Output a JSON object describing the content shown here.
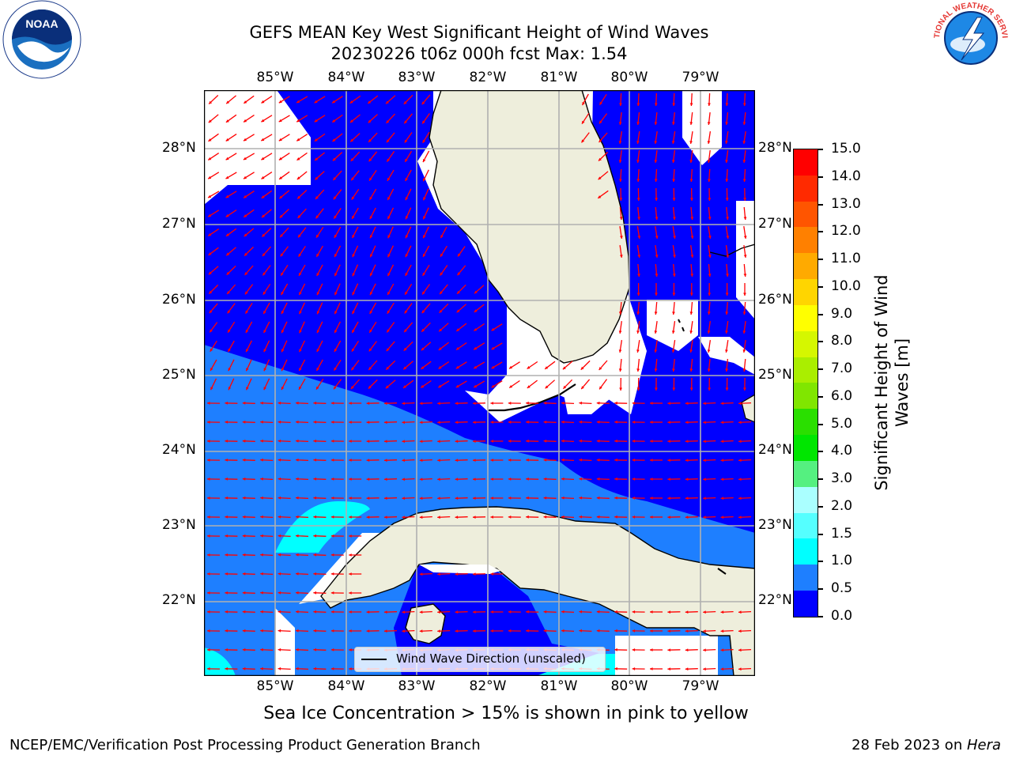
{
  "title": {
    "line1": "GEFS MEAN Key West Significant Height of Wind Waves",
    "line2": "20230226 t06z 000h fcst   Max: 1.54"
  },
  "map": {
    "lon_labels": [
      "85°W",
      "84°W",
      "83°W",
      "82°W",
      "81°W",
      "80°W",
      "79°W"
    ],
    "lat_labels": [
      "28°N",
      "27°N",
      "26°N",
      "25°N",
      "24°N",
      "23°N",
      "22°N"
    ],
    "legend_label": "Wind Wave Direction (unscaled)",
    "colors": {
      "land": "#eeeedc",
      "blue0": "#0000ff",
      "blue1": "#1e7fff",
      "cyan": "#00ffff",
      "arrow": "#ff0000",
      "grid": "#b0b0b0"
    }
  },
  "colorbar": {
    "label_line1": "Significant Height of Wind",
    "label_line2": "Waves [m]",
    "ticks": [
      "15.0",
      "14.0",
      "13.0",
      "12.0",
      "11.0",
      "10.0",
      "9.0",
      "8.0",
      "7.0",
      "6.0",
      "5.0",
      "4.0",
      "3.0",
      "2.0",
      "1.5",
      "1.0",
      "0.5",
      "0.0"
    ],
    "colors": [
      "#ff0000",
      "#ff2a00",
      "#ff5500",
      "#ff8000",
      "#ffaa00",
      "#ffd500",
      "#ffff00",
      "#d5f700",
      "#aaee00",
      "#80e600",
      "#2adf00",
      "#00e600",
      "#55f080",
      "#aaffff",
      "#55ffff",
      "#00ffff",
      "#1e7fff",
      "#0000ff"
    ]
  },
  "note": "Sea Ice Concentration > 15% is shown in pink to yellow",
  "footer": {
    "left": "NCEP/EMC/Verification Post Processing Product Generation Branch",
    "right_date": "28 Feb 2023 on ",
    "right_host": "Hera"
  },
  "logos": {
    "noaa_text": "NOAA",
    "nws_text": "NATIONAL WEATHER SERVICE"
  }
}
